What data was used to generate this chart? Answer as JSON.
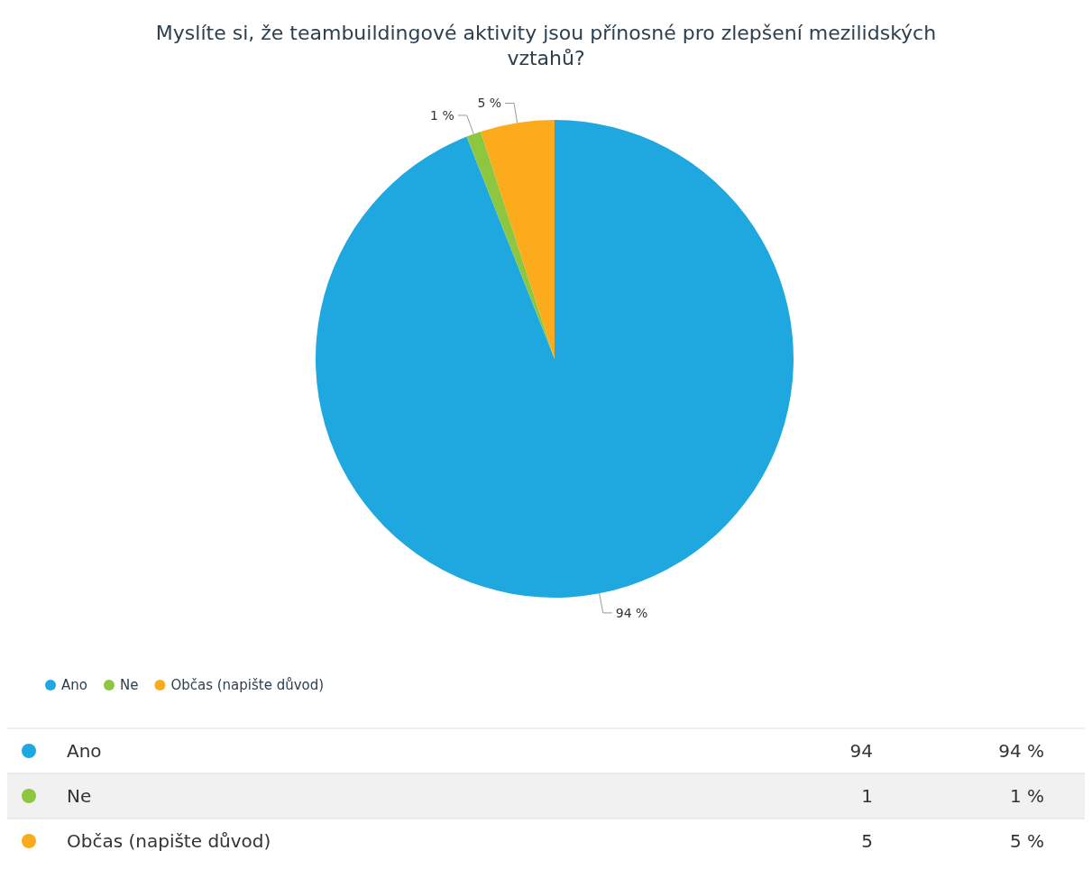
{
  "chart_data": {
    "type": "pie",
    "title": "Myslíte si, že teambuildingové aktivity jsou přínosné pro zlepšení mezilidských vztahů?",
    "categories": [
      "Ano",
      "Ne",
      "Občas (napište důvod)"
    ],
    "values": [
      94,
      1,
      5
    ],
    "colors": [
      "#1fa8e0",
      "#8dc63f",
      "#fbab1c"
    ],
    "value_labels": [
      "94 %",
      "1 %",
      "5 %"
    ],
    "annotations": [
      "94",
      "1",
      "5"
    ],
    "legend": "bottom left"
  }
}
